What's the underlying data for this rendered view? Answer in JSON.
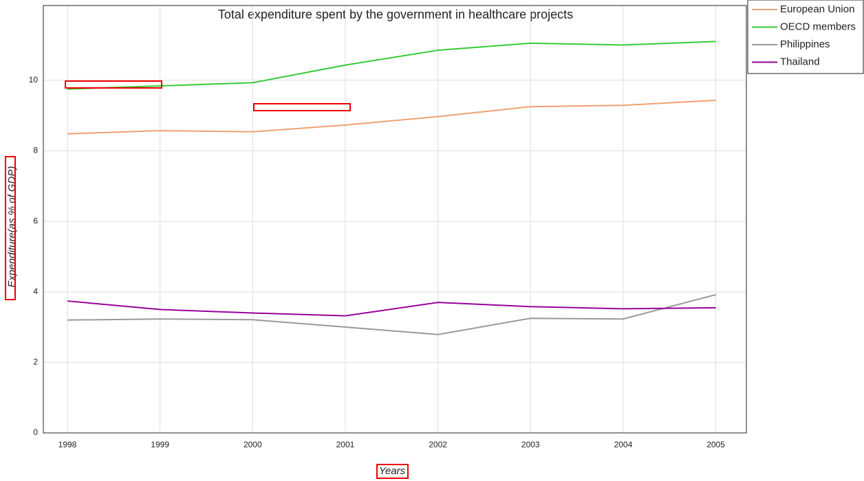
{
  "chart_data": {
    "type": "line",
    "title": "Total expenditure spent by the government in healthcare projects",
    "x_label": "Years",
    "y_label": "Expenditure(as % of GDP)",
    "x": [
      1998,
      1999,
      2000,
      2001,
      2002,
      2003,
      2004,
      2005
    ],
    "xlim": [
      1997.74,
      2005.33
    ],
    "xticks": [
      1998,
      1999,
      2000,
      2001,
      2002,
      2003,
      2004,
      2005
    ],
    "ylim": [
      0,
      12.12
    ],
    "yticks": [
      0,
      2,
      4,
      6,
      8,
      10
    ],
    "grid": true,
    "legend": "upper right",
    "series": [
      {
        "name": "European Union",
        "color": "#f0a070",
        "values": [
          8.48,
          8.57,
          8.54,
          8.73,
          8.97,
          9.25,
          9.29,
          9.43
        ]
      },
      {
        "name": "OECD members",
        "color": "#33cc33",
        "values": [
          9.75,
          9.84,
          9.93,
          10.43,
          10.85,
          11.05,
          11.0,
          11.1
        ]
      },
      {
        "name": "Philippines",
        "color": "#999999",
        "values": [
          3.2,
          3.23,
          3.21,
          3.0,
          2.79,
          3.25,
          3.23,
          3.92
        ]
      },
      {
        "name": "Thailand",
        "color": "#990099",
        "values": [
          3.74,
          3.5,
          3.4,
          3.32,
          3.7,
          3.58,
          3.52,
          3.55
        ]
      }
    ]
  }
}
